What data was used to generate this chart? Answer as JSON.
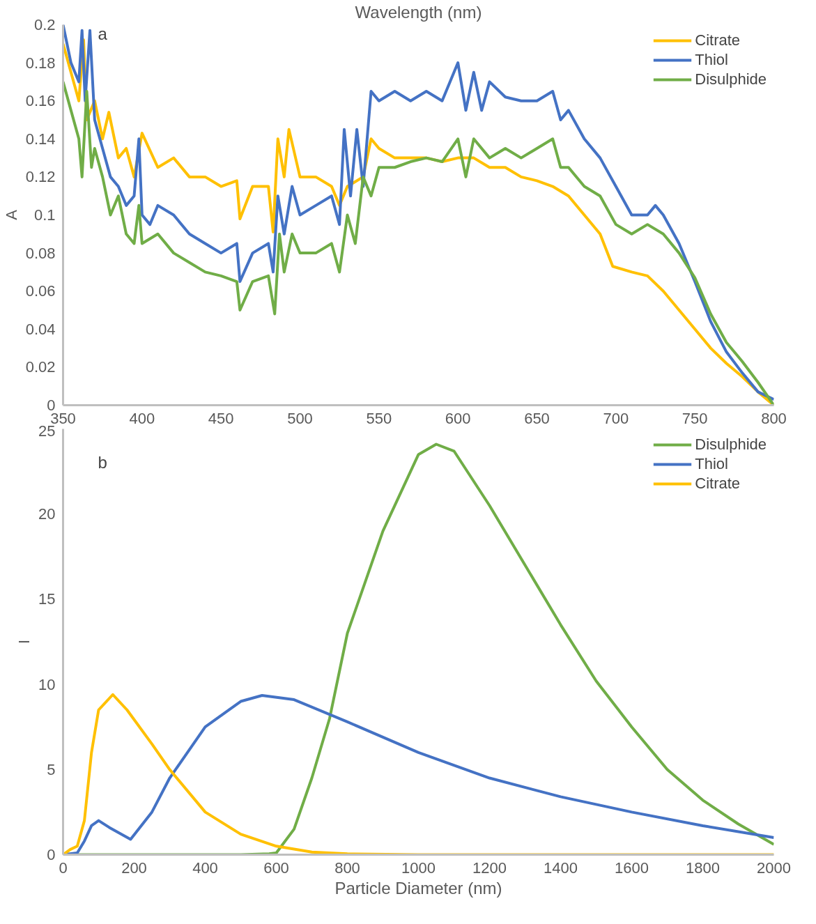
{
  "chart_data": [
    {
      "type": "line",
      "xlabel": "Wavelength (nm)",
      "ylabel": "A",
      "annotations": [
        "a"
      ],
      "xlim": [
        350,
        800
      ],
      "xticks": [
        350,
        400,
        450,
        500,
        550,
        600,
        650,
        700,
        750,
        800
      ],
      "ylim": [
        0,
        0.2
      ],
      "yticks": [
        0,
        0.02,
        0.04,
        0.06,
        0.08,
        0.1,
        0.12,
        0.14,
        0.16,
        0.18,
        0.2
      ],
      "grid": false,
      "legend": "top right",
      "series": [
        {
          "name": "Citrate",
          "color": "#ffc000",
          "x": [
            350,
            355,
            360,
            363,
            365,
            370,
            375,
            379,
            385,
            390,
            395,
            400,
            410,
            420,
            430,
            440,
            450,
            460,
            462,
            470,
            480,
            483,
            486,
            490,
            493,
            500,
            510,
            520,
            525,
            530,
            540,
            545,
            550,
            560,
            570,
            580,
            590,
            600,
            610,
            620,
            630,
            640,
            650,
            660,
            670,
            680,
            690,
            698,
            710,
            720,
            730,
            740,
            750,
            760,
            770,
            780,
            790,
            800
          ],
          "values": [
            0.19,
            0.175,
            0.16,
            0.192,
            0.15,
            0.16,
            0.14,
            0.154,
            0.13,
            0.135,
            0.12,
            0.143,
            0.125,
            0.13,
            0.12,
            0.12,
            0.115,
            0.118,
            0.098,
            0.115,
            0.115,
            0.091,
            0.14,
            0.12,
            0.145,
            0.12,
            0.12,
            0.115,
            0.105,
            0.115,
            0.12,
            0.14,
            0.135,
            0.13,
            0.13,
            0.13,
            0.128,
            0.13,
            0.13,
            0.125,
            0.125,
            0.12,
            0.118,
            0.115,
            0.11,
            0.1,
            0.09,
            0.073,
            0.07,
            0.068,
            0.06,
            0.05,
            0.04,
            0.03,
            0.022,
            0.015,
            0.007,
            0.0
          ]
        },
        {
          "name": "Thiol",
          "color": "#4472c4",
          "x": [
            350,
            355,
            360,
            362,
            364,
            367,
            370,
            375,
            380,
            385,
            390,
            395,
            398,
            400,
            405,
            410,
            420,
            430,
            440,
            450,
            460,
            462,
            470,
            480,
            483,
            486,
            490,
            495,
            500,
            510,
            520,
            525,
            528,
            532,
            536,
            540,
            545,
            550,
            560,
            570,
            580,
            590,
            600,
            605,
            610,
            615,
            620,
            630,
            640,
            650,
            660,
            665,
            670,
            680,
            690,
            700,
            710,
            720,
            725,
            730,
            740,
            750,
            760,
            770,
            780,
            790,
            800
          ],
          "values": [
            0.2,
            0.18,
            0.17,
            0.197,
            0.16,
            0.197,
            0.15,
            0.135,
            0.12,
            0.115,
            0.105,
            0.11,
            0.14,
            0.1,
            0.095,
            0.105,
            0.1,
            0.09,
            0.085,
            0.08,
            0.085,
            0.065,
            0.08,
            0.085,
            0.07,
            0.11,
            0.09,
            0.115,
            0.1,
            0.105,
            0.11,
            0.095,
            0.145,
            0.11,
            0.145,
            0.115,
            0.165,
            0.16,
            0.165,
            0.16,
            0.165,
            0.16,
            0.18,
            0.155,
            0.175,
            0.155,
            0.17,
            0.162,
            0.16,
            0.16,
            0.165,
            0.15,
            0.155,
            0.14,
            0.13,
            0.115,
            0.1,
            0.1,
            0.105,
            0.1,
            0.085,
            0.065,
            0.044,
            0.028,
            0.017,
            0.007,
            0.003
          ]
        },
        {
          "name": "Disulphide",
          "color": "#70ad47",
          "x": [
            350,
            355,
            360,
            362,
            365,
            368,
            370,
            375,
            380,
            385,
            390,
            395,
            398,
            400,
            410,
            420,
            430,
            440,
            450,
            460,
            462,
            470,
            480,
            484,
            487,
            490,
            495,
            500,
            510,
            520,
            525,
            530,
            535,
            540,
            545,
            550,
            560,
            570,
            580,
            590,
            600,
            605,
            610,
            620,
            630,
            640,
            650,
            660,
            665,
            670,
            680,
            690,
            700,
            710,
            720,
            730,
            740,
            750,
            760,
            770,
            780,
            790,
            800
          ],
          "values": [
            0.17,
            0.155,
            0.14,
            0.12,
            0.165,
            0.125,
            0.135,
            0.12,
            0.1,
            0.11,
            0.09,
            0.085,
            0.105,
            0.085,
            0.09,
            0.08,
            0.075,
            0.07,
            0.068,
            0.065,
            0.05,
            0.065,
            0.068,
            0.048,
            0.09,
            0.07,
            0.09,
            0.08,
            0.08,
            0.085,
            0.07,
            0.1,
            0.085,
            0.12,
            0.11,
            0.125,
            0.125,
            0.128,
            0.13,
            0.128,
            0.14,
            0.12,
            0.14,
            0.13,
            0.135,
            0.13,
            0.135,
            0.14,
            0.125,
            0.125,
            0.115,
            0.11,
            0.095,
            0.09,
            0.095,
            0.09,
            0.08,
            0.067,
            0.048,
            0.033,
            0.023,
            0.012,
            0.0
          ]
        }
      ]
    },
    {
      "type": "line",
      "xlabel": "Particle Diameter (nm)",
      "ylabel": "I",
      "annotations": [
        "b"
      ],
      "xlim": [
        0,
        2000
      ],
      "xticks": [
        0,
        200,
        400,
        600,
        800,
        1000,
        1200,
        1400,
        1600,
        1800,
        2000
      ],
      "ylim": [
        0,
        25
      ],
      "yticks": [
        0,
        5,
        10,
        15,
        20,
        25
      ],
      "grid": false,
      "legend": "top right",
      "series": [
        {
          "name": "Disulphide",
          "color": "#70ad47",
          "x": [
            0,
            500,
            580,
            600,
            650,
            700,
            750,
            800,
            900,
            1000,
            1050,
            1100,
            1200,
            1300,
            1400,
            1500,
            1600,
            1700,
            1800,
            1900,
            2000
          ],
          "values": [
            0,
            0,
            0.05,
            0.1,
            1.5,
            4.5,
            8,
            13,
            19,
            23.5,
            24.1,
            23.7,
            20.5,
            17,
            13.5,
            10.2,
            7.5,
            5,
            3.2,
            1.8,
            0.6
          ]
        },
        {
          "name": "Thiol",
          "color": "#4472c4",
          "x": [
            0,
            40,
            60,
            80,
            100,
            130,
            190,
            250,
            300,
            400,
            500,
            560,
            650,
            800,
            1000,
            1200,
            1400,
            1600,
            1800,
            2000
          ],
          "values": [
            0,
            0.1,
            0.8,
            1.7,
            2.0,
            1.6,
            0.9,
            2.5,
            4.5,
            7.5,
            9.0,
            9.35,
            9.1,
            7.8,
            6.0,
            4.5,
            3.4,
            2.5,
            1.7,
            1.0
          ]
        },
        {
          "name": "Citrate",
          "color": "#ffc000",
          "x": [
            0,
            20,
            40,
            60,
            80,
            100,
            140,
            180,
            250,
            300,
            400,
            500,
            600,
            700,
            800,
            1000,
            1500,
            2000
          ],
          "values": [
            0,
            0.3,
            0.5,
            2,
            6,
            8.5,
            9.4,
            8.5,
            6.5,
            5,
            2.5,
            1.2,
            0.5,
            0.15,
            0.05,
            0,
            0,
            0
          ]
        }
      ]
    }
  ]
}
